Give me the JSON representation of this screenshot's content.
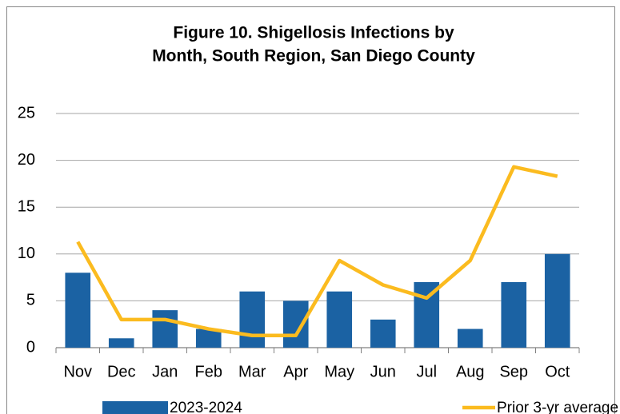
{
  "chart_data": {
    "type": "bar",
    "title": [
      "Figure 10. Shigellosis Infections by",
      "Month, South Region, San Diego County"
    ],
    "categories": [
      "Nov",
      "Dec",
      "Jan",
      "Feb",
      "Mar",
      "Apr",
      "May",
      "Jun",
      "Jul",
      "Aug",
      "Sep",
      "Oct"
    ],
    "series": [
      {
        "name": "2023-2024",
        "type": "bar",
        "color": "#1b62a3",
        "values": [
          8,
          1,
          4,
          2,
          6,
          5,
          6,
          3,
          7,
          2,
          7,
          10
        ]
      },
      {
        "name": "Prior 3-yr average",
        "type": "line",
        "color": "#fbbb1f",
        "values": [
          11.3,
          3,
          3,
          2,
          1.3,
          1.3,
          9.3,
          6.7,
          5.3,
          9.3,
          19.3,
          18.3
        ]
      }
    ],
    "ylim": [
      0,
      25
    ],
    "yticks": [
      0,
      5,
      10,
      15,
      20,
      25
    ],
    "grid": true,
    "legend": "bottom"
  }
}
